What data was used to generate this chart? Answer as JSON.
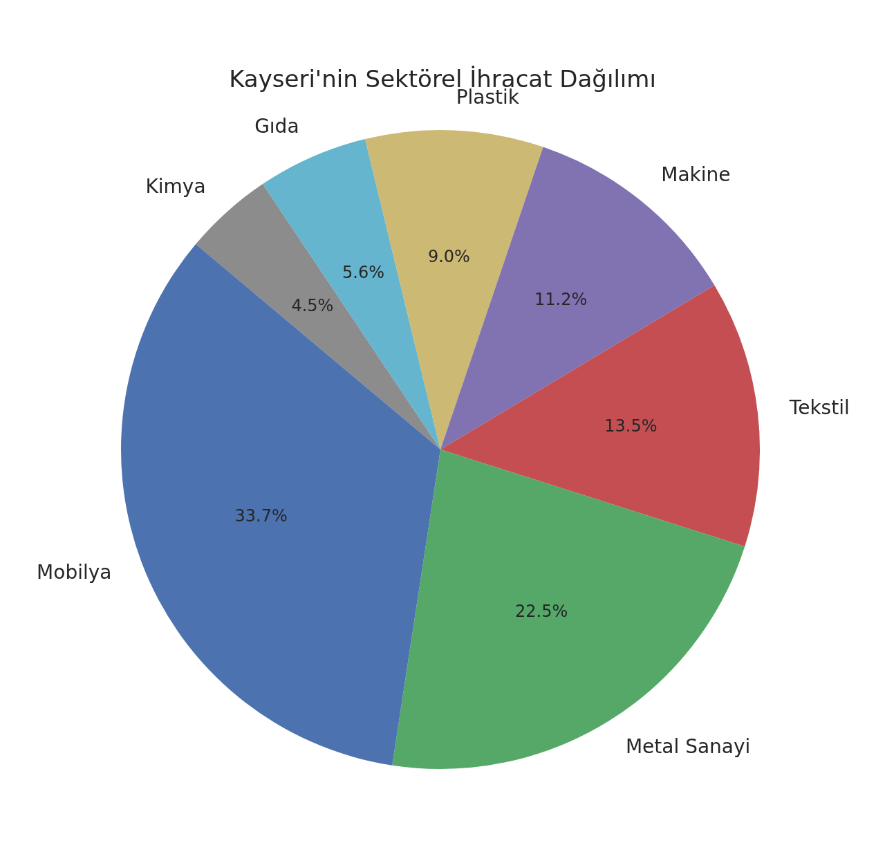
{
  "chart_data": {
    "type": "pie",
    "title": "Kayseri'nin Sektörel İhracat Dağılımı",
    "categories": [
      "Kimya",
      "Gıda",
      "Plastik",
      "Makine",
      "Tekstil",
      "Metal Sanayi",
      "Mobilya"
    ],
    "values": [
      4.5,
      5.6,
      9.0,
      11.2,
      13.5,
      22.5,
      33.7
    ],
    "colors": [
      "#8c8c8c",
      "#64b5cd",
      "#ccb974",
      "#8172b2",
      "#c44e52",
      "#55a868",
      "#4c72b0"
    ],
    "value_labels": [
      "4.5%",
      "5.6%",
      "9.0%",
      "11.2%",
      "13.5%",
      "22.5%",
      "33.7%"
    ],
    "legend": false
  }
}
